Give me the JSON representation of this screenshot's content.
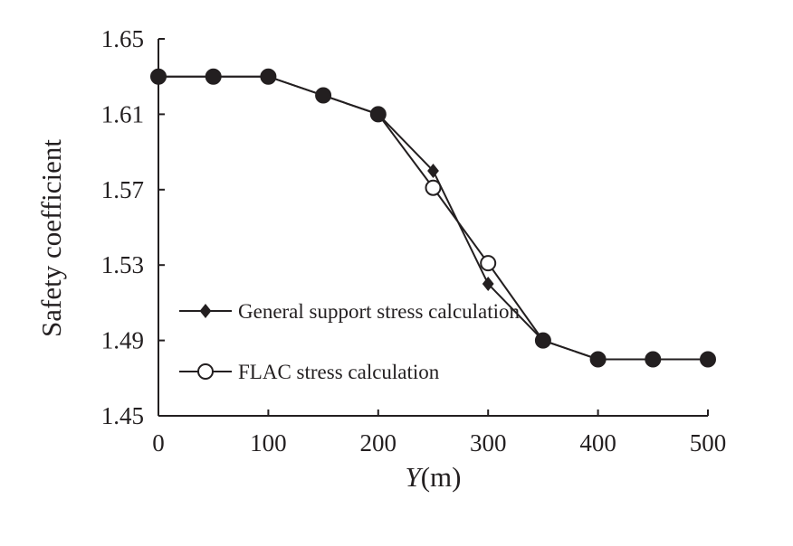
{
  "chart_data": {
    "type": "line",
    "xlabel_italic": "Y",
    "xlabel_rest": "(m)",
    "ylabel": "Safety coefficient",
    "xlim": [
      0,
      500
    ],
    "ylim": [
      1.45,
      1.65
    ],
    "xticks": [
      0,
      100,
      200,
      300,
      400,
      500
    ],
    "xtick_labels": [
      "0",
      "100",
      "200",
      "300",
      "400",
      "500"
    ],
    "yticks": [
      1.45,
      1.49,
      1.53,
      1.57,
      1.61,
      1.65
    ],
    "ytick_labels": [
      "1.45",
      "1.49",
      "1.53",
      "1.57",
      "1.61",
      "1.65"
    ],
    "grid": false,
    "legend_position": "left",
    "series": [
      {
        "name": "General support stress calculation",
        "marker": "diamond-filled",
        "x": [
          0,
          50,
          100,
          150,
          200,
          250,
          300,
          350,
          400,
          450,
          500
        ],
        "y": [
          1.63,
          1.63,
          1.63,
          1.62,
          1.61,
          1.58,
          1.52,
          1.49,
          1.48,
          1.48,
          1.48
        ]
      },
      {
        "name": "FLAC stress calculation",
        "marker": "circle-open",
        "x": [
          0,
          50,
          100,
          150,
          200,
          250,
          300,
          350,
          400,
          450,
          500
        ],
        "y": [
          1.63,
          1.63,
          1.63,
          1.62,
          1.61,
          1.571,
          1.531,
          1.49,
          1.48,
          1.48,
          1.48
        ]
      }
    ],
    "colors": {
      "line": "#231f20",
      "marker_fill": "#231f20",
      "background": "#ffffff"
    }
  }
}
